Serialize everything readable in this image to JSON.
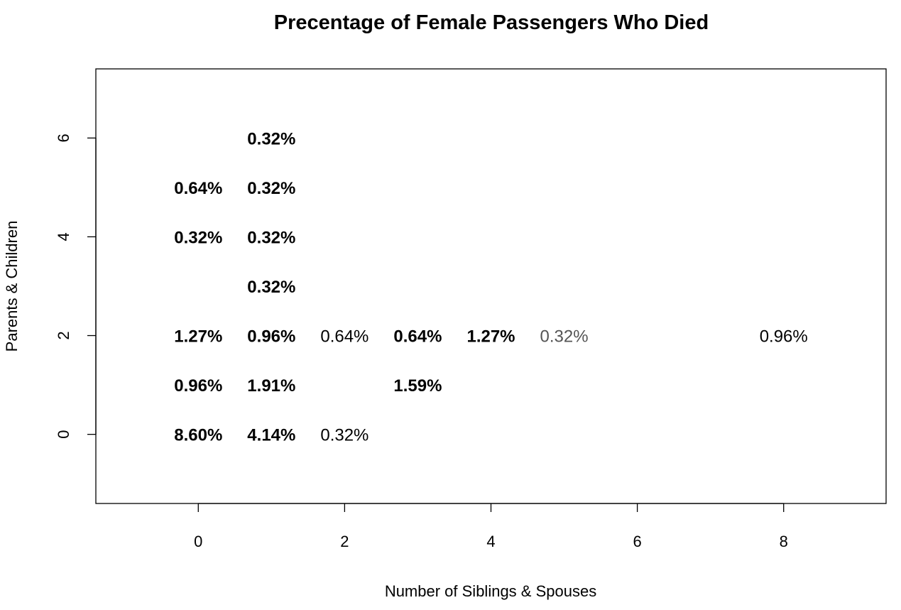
{
  "chart_data": {
    "type": "scatter",
    "title": "Precentage of Female Passengers Who Died",
    "xlabel": "Number of Siblings & Spouses",
    "ylabel": "Parents & Children",
    "xlim": [
      -1.4,
      9.4
    ],
    "ylim": [
      -1.4,
      7.4
    ],
    "xticks": [
      0,
      2,
      4,
      6,
      8
    ],
    "yticks": [
      0,
      2,
      4,
      6
    ],
    "grid": false,
    "points": [
      {
        "x": 1,
        "y": 6,
        "label": "0.32%",
        "bold": true
      },
      {
        "x": 0,
        "y": 5,
        "label": "0.64%",
        "bold": true
      },
      {
        "x": 1,
        "y": 5,
        "label": "0.32%",
        "bold": true
      },
      {
        "x": 0,
        "y": 4,
        "label": "0.32%",
        "bold": true
      },
      {
        "x": 1,
        "y": 4,
        "label": "0.32%",
        "bold": true
      },
      {
        "x": 1,
        "y": 3,
        "label": "0.32%",
        "bold": true
      },
      {
        "x": 0,
        "y": 2,
        "label": "1.27%",
        "bold": true
      },
      {
        "x": 1,
        "y": 2,
        "label": "0.96%",
        "bold": true
      },
      {
        "x": 2,
        "y": 2,
        "label": "0.64%",
        "bold": false
      },
      {
        "x": 3,
        "y": 2,
        "label": "0.64%",
        "bold": true
      },
      {
        "x": 4,
        "y": 2,
        "label": "1.27%",
        "bold": true
      },
      {
        "x": 5,
        "y": 2,
        "label": "0.32%",
        "bold": false,
        "color": "#555555"
      },
      {
        "x": 8,
        "y": 2,
        "label": "0.96%",
        "bold": false
      },
      {
        "x": 0,
        "y": 1,
        "label": "0.96%",
        "bold": true
      },
      {
        "x": 1,
        "y": 1,
        "label": "1.91%",
        "bold": true
      },
      {
        "x": 3,
        "y": 1,
        "label": "1.59%",
        "bold": true
      },
      {
        "x": 0,
        "y": 0,
        "label": "8.60%",
        "bold": true
      },
      {
        "x": 1,
        "y": 0,
        "label": "4.14%",
        "bold": true
      },
      {
        "x": 2,
        "y": 0,
        "label": "0.32%",
        "bold": false
      }
    ]
  }
}
